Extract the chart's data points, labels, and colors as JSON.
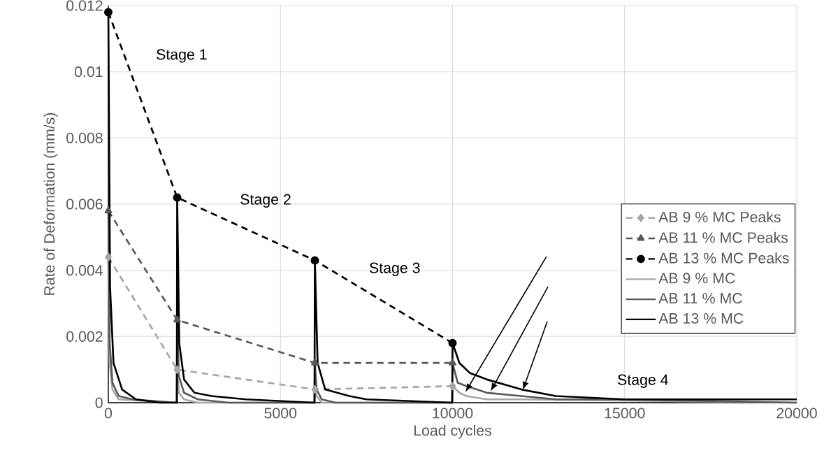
{
  "chart_data": {
    "type": "line",
    "xlabel": "Load cycles",
    "ylabel": "Rate of Deformation (mm/s)",
    "xlim": [
      0,
      20000
    ],
    "ylim": [
      0,
      0.012
    ],
    "xticks": [
      0,
      5000,
      10000,
      15000,
      20000
    ],
    "yticks": [
      0,
      0.002,
      0.004,
      0.006,
      0.008,
      0.01,
      0.012
    ],
    "grid": true,
    "legend": "right",
    "annotations": [
      "Stage 1",
      "Stage 2",
      "Stage 3",
      "Stage 4"
    ],
    "series": [
      {
        "name": "AB 9 % MC Peaks",
        "color": "#a6a6a6",
        "marker": "diamond",
        "line_style": "dashed",
        "x": [
          0,
          2000,
          6000,
          10000
        ],
        "values": [
          0.0044,
          0.001,
          0.0004,
          0.0005
        ]
      },
      {
        "name": "AB 11 % MC Peaks",
        "color": "#595959",
        "marker": "triangle",
        "line_style": "dashed",
        "x": [
          0,
          2000,
          6000,
          10000
        ],
        "values": [
          0.0058,
          0.0025,
          0.0012,
          0.0012
        ]
      },
      {
        "name": "AB 13 % MC Peaks",
        "color": "#000000",
        "marker": "circle",
        "line_style": "dashed",
        "x": [
          0,
          2000,
          6000,
          10000
        ],
        "values": [
          0.0118,
          0.0062,
          0.0043,
          0.0018
        ]
      },
      {
        "name": "AB 9 % MC",
        "color": "#a6a6a6",
        "marker": "none",
        "line_style": "solid",
        "x": [
          0,
          40,
          120,
          300,
          1990,
          2000,
          2050,
          2200,
          2600,
          5990,
          6000,
          6050,
          6200,
          9990,
          10000,
          10200,
          10400,
          11000,
          12000,
          20000
        ],
        "values": [
          0.0044,
          0.0012,
          0.0004,
          0.0001,
          0,
          0.001,
          0.0003,
          0.0001,
          0,
          0,
          0.0004,
          0.0002,
          0,
          0,
          0.0005,
          0.0003,
          0.0002,
          0.0001,
          0.0001,
          0
        ]
      },
      {
        "name": "AB 11 % MC",
        "color": "#595959",
        "marker": "none",
        "line_style": "solid",
        "x": [
          0,
          40,
          120,
          300,
          700,
          1990,
          2000,
          2050,
          2200,
          2600,
          3500,
          5990,
          6000,
          6050,
          6200,
          6600,
          9990,
          10000,
          10150,
          10400,
          11000,
          12000,
          13000,
          15000,
          20000
        ],
        "values": [
          0.0058,
          0.0018,
          0.0006,
          0.0002,
          0.0001,
          0,
          0.0025,
          0.0008,
          0.0003,
          0.0001,
          0,
          0,
          0.0012,
          0.0004,
          0.0001,
          0,
          0,
          0.0012,
          0.0006,
          0.0005,
          0.0003,
          0.0002,
          0.0001,
          0.0001,
          0
        ]
      },
      {
        "name": "AB 13 % MC",
        "color": "#000000",
        "marker": "none",
        "line_style": "solid",
        "x": [
          0,
          50,
          150,
          400,
          800,
          1500,
          1990,
          2000,
          2060,
          2200,
          2500,
          3000,
          4000,
          5990,
          6000,
          6080,
          6300,
          7000,
          7500,
          9990,
          10000,
          10200,
          10500,
          11000,
          12000,
          13000,
          15000,
          17500,
          20000
        ],
        "values": [
          0.0118,
          0.0035,
          0.0012,
          0.0004,
          0.0001,
          0,
          0,
          0.0062,
          0.0018,
          0.0007,
          0.0003,
          0.0002,
          0.0001,
          0,
          0.0043,
          0.0012,
          0.0004,
          0.0002,
          0.0001,
          0,
          0.0018,
          0.0012,
          0.0009,
          0.0007,
          0.0004,
          0.0002,
          0.0001,
          0.0001,
          0.0001
        ]
      }
    ]
  }
}
